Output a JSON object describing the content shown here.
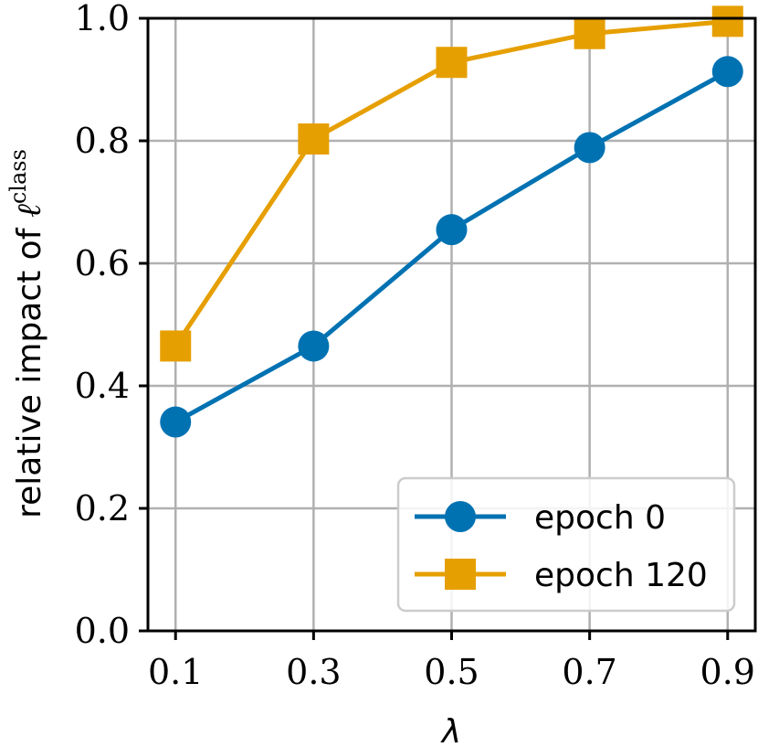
{
  "chart_data": {
    "type": "line",
    "x": [
      0.1,
      0.3,
      0.5,
      0.7,
      0.9
    ],
    "x_tick_labels": [
      "0.1",
      "0.3",
      "0.5",
      "0.7",
      "0.9"
    ],
    "y_ticks": [
      0.0,
      0.2,
      0.4,
      0.6,
      0.8,
      1.0
    ],
    "y_tick_labels": [
      "0.0",
      "0.2",
      "0.4",
      "0.6",
      "0.8",
      "1.0"
    ],
    "xlim": [
      0.06,
      0.94
    ],
    "ylim": [
      0.0,
      1.0
    ],
    "xlabel": "λ",
    "ylabel": "relative impact of ",
    "ylabel_symbol": "ℓ",
    "ylabel_superscript": "class",
    "grid": true,
    "legend_position": "lower-right",
    "series": [
      {
        "name": "epoch 0",
        "marker": "circle",
        "color": "#0072b2",
        "values": [
          0.341,
          0.465,
          0.655,
          0.789,
          0.913
        ]
      },
      {
        "name": "epoch 120",
        "marker": "square",
        "color": "#e69f00",
        "values": [
          0.465,
          0.803,
          0.928,
          0.975,
          0.995
        ]
      }
    ]
  }
}
